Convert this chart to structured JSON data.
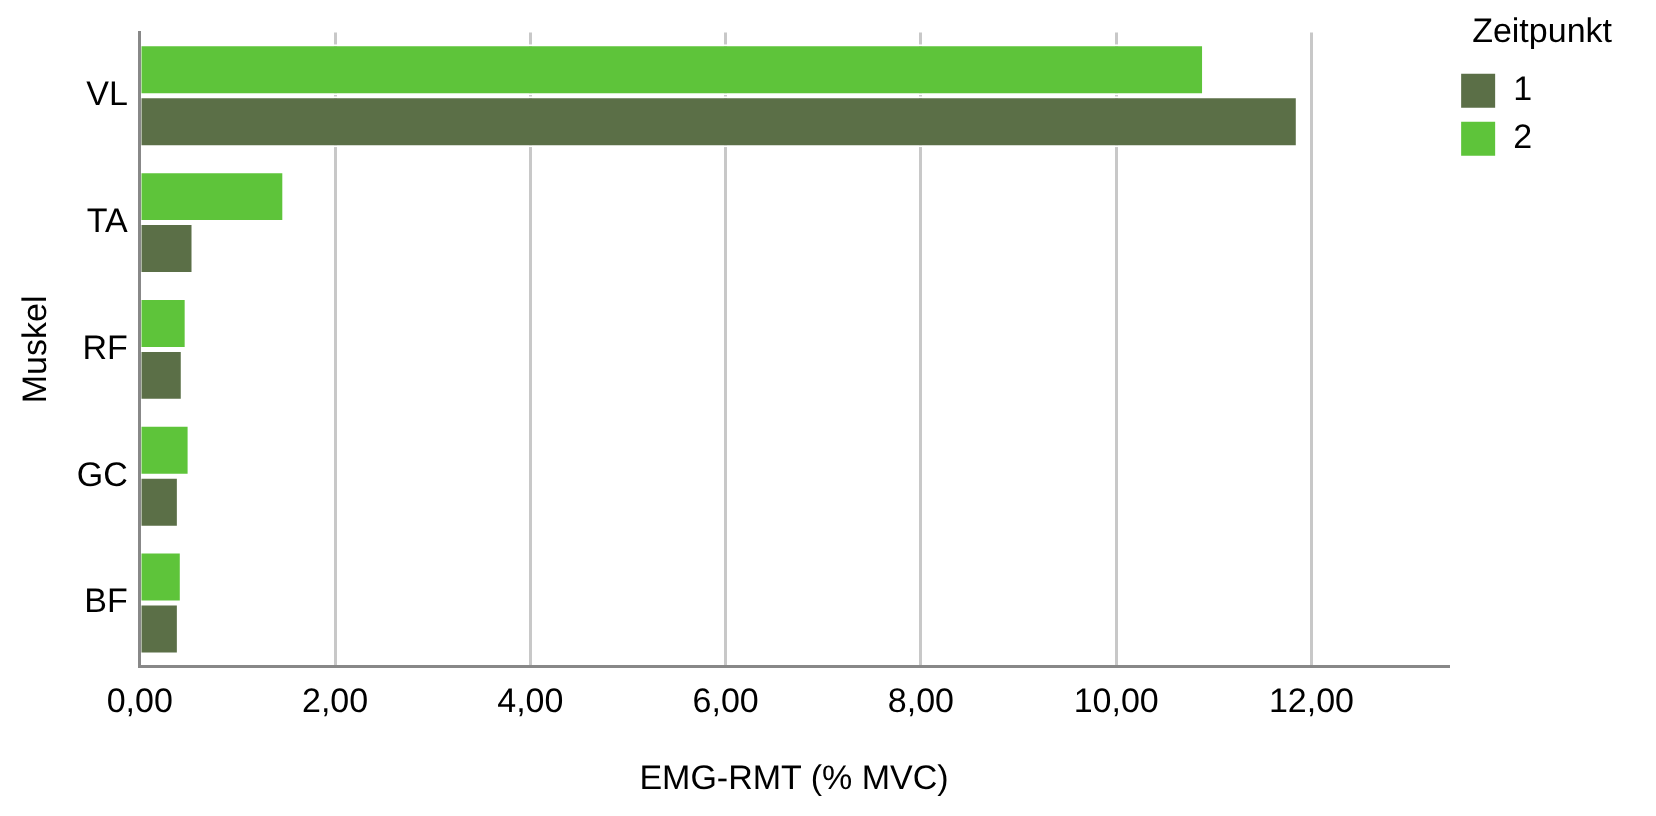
{
  "chart_data": {
    "type": "bar",
    "orientation": "horizontal",
    "xlabel": "EMG-RMT (% MVC)",
    "ylabel": "Muskel",
    "legend_title": "Zeitpunkt",
    "legend": "top right",
    "grid": "x",
    "categories": [
      "VL",
      "TA",
      "RF",
      "GC",
      "BF"
    ],
    "series": [
      {
        "name": "1",
        "color": "#5b6f47",
        "values": [
          11.86,
          0.55,
          0.44,
          0.4,
          0.4
        ]
      },
      {
        "name": "2",
        "color": "#5ec43a",
        "values": [
          10.9,
          1.48,
          0.48,
          0.51,
          0.43
        ]
      }
    ],
    "xlim": [
      0,
      13.4
    ],
    "xticks": [
      {
        "value": 0,
        "label": "0,00"
      },
      {
        "value": 2,
        "label": "2,00"
      },
      {
        "value": 4,
        "label": "4,00"
      },
      {
        "value": 6,
        "label": "6,00"
      },
      {
        "value": 8,
        "label": "8,00"
      },
      {
        "value": 10,
        "label": "10,00"
      },
      {
        "value": 12,
        "label": "12,00"
      }
    ]
  }
}
